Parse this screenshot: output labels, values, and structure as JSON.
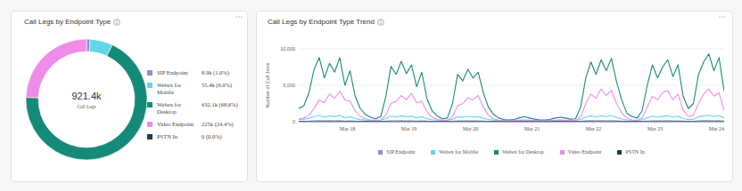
{
  "chart_data": [
    {
      "type": "donut",
      "title": "Call Legs by Endpoint Type",
      "center_label": "921.4k",
      "center_caption": "Call Legs",
      "categories": [
        "SIP Endpoint",
        "Webex for Mobile",
        "Webex for Desktop",
        "Video Endpoint",
        "PSTN In"
      ],
      "values": [
        8900,
        55400,
        632100,
        225000,
        0
      ],
      "value_labels": [
        "8.9k (1.0%)",
        "55.4k (6.0%)",
        "632.1k (68.6%)",
        "225k (24.4%)",
        "0 (0.0%)"
      ],
      "colors": [
        "#8d91d0",
        "#62d6e6",
        "#168a78",
        "#ef8be9",
        "#1d3a48"
      ]
    },
    {
      "type": "line",
      "title": "Call Legs by Endpoint Type Trend",
      "y_label": "Number of Call Joins",
      "x": [
        5,
        7,
        9,
        11,
        13,
        15,
        17,
        19,
        21,
        23,
        25,
        27,
        29,
        31,
        33,
        35,
        37,
        39,
        41,
        43,
        45,
        47,
        49,
        51,
        53,
        55,
        57,
        59,
        61,
        63,
        65,
        67,
        69,
        71,
        73,
        75,
        77,
        79,
        81,
        83,
        85,
        87,
        89,
        91,
        93,
        95,
        97,
        99,
        101,
        103,
        105,
        107,
        109,
        111,
        113,
        115,
        117,
        119,
        121,
        123,
        125,
        127,
        129,
        131,
        133,
        135,
        137,
        139,
        141,
        143,
        145,
        147,
        149,
        151,
        153,
        155,
        157,
        159,
        161,
        163,
        165,
        167,
        169,
        171
      ],
      "xlim": [
        5,
        171
      ],
      "xticks": [
        {
          "value": 24,
          "label": "Mar 18"
        },
        {
          "value": 48,
          "label": "Mar 19"
        },
        {
          "value": 72,
          "label": "Mar 20"
        },
        {
          "value": 96,
          "label": "Mar 21"
        },
        {
          "value": 120,
          "label": "Mar 22"
        },
        {
          "value": 144,
          "label": "Mar 23"
        },
        {
          "value": 168,
          "label": "Mar 24"
        }
      ],
      "ylim": [
        0,
        10000
      ],
      "yticks": [
        0,
        {
          "value": 5000,
          "label": "5,000"
        },
        {
          "value": 10000,
          "label": "10,000"
        }
      ],
      "grid": true,
      "legend": "bottom",
      "series": [
        {
          "name": "SIP Endpoint",
          "color": "#8d91d0",
          "values": [
            60,
            70,
            90,
            130,
            150,
            110,
            140,
            120,
            150,
            100,
            120,
            80,
            60,
            50,
            50,
            40,
            50,
            80,
            130,
            120,
            140,
            120,
            130,
            100,
            120,
            80,
            60,
            50,
            40,
            50,
            70,
            120,
            110,
            130,
            110,
            120,
            90,
            60,
            50,
            50,
            40,
            40,
            40,
            50,
            50,
            50,
            40,
            40,
            40,
            40,
            50,
            50,
            50,
            40,
            40,
            60,
            110,
            140,
            120,
            140,
            120,
            140,
            110,
            80,
            50,
            50,
            50,
            60,
            100,
            130,
            110,
            130,
            140,
            110,
            130,
            80,
            60,
            70,
            120,
            140,
            150,
            120,
            150,
            90
          ]
        },
        {
          "name": "Webex for Mobile",
          "color": "#62d6e6",
          "values": [
            290,
            330,
            470,
            730,
            850,
            630,
            790,
            690,
            850,
            550,
            710,
            430,
            290,
            230,
            200,
            180,
            210,
            430,
            760,
            670,
            810,
            680,
            770,
            530,
            690,
            410,
            270,
            210,
            180,
            190,
            350,
            670,
            600,
            730,
            630,
            690,
            470,
            310,
            230,
            190,
            170,
            170,
            170,
            190,
            210,
            190,
            180,
            170,
            170,
            170,
            190,
            200,
            190,
            180,
            180,
            310,
            630,
            810,
            670,
            830,
            710,
            850,
            590,
            390,
            250,
            210,
            190,
            270,
            550,
            770,
            630,
            750,
            830,
            650,
            770,
            430,
            290,
            350,
            670,
            810,
            890,
            710,
            850,
            490
          ]
        },
        {
          "name": "Webex for Desktop",
          "color": "#168a78",
          "values": [
            1800,
            2200,
            4000,
            7200,
            8800,
            6000,
            8000,
            6800,
            8800,
            5000,
            7000,
            3500,
            1800,
            1000,
            600,
            400,
            700,
            3500,
            7600,
            6500,
            8300,
            6600,
            7800,
            4800,
            6800,
            3200,
            1500,
            800,
            400,
            500,
            2500,
            6500,
            5600,
            7200,
            6000,
            6800,
            4000,
            2000,
            1000,
            500,
            300,
            250,
            300,
            500,
            700,
            500,
            350,
            250,
            250,
            300,
            500,
            600,
            500,
            350,
            400,
            2000,
            6000,
            8200,
            6500,
            8500,
            7000,
            8700,
            5500,
            3000,
            1200,
            700,
            500,
            1500,
            5000,
            7800,
            6000,
            7500,
            8500,
            6200,
            7800,
            3500,
            1800,
            2500,
            6500,
            8200,
            9300,
            7000,
            8800,
            4200
          ]
        },
        {
          "name": "Video Endpoint",
          "color": "#ef8be9",
          "values": [
            400,
            500,
            900,
            1800,
            3000,
            2600,
            3800,
            3200,
            4200,
            3000,
            2800,
            1500,
            700,
            400,
            250,
            200,
            250,
            900,
            2500,
            2800,
            3600,
            3000,
            3900,
            2600,
            2800,
            1400,
            600,
            300,
            200,
            200,
            700,
            2200,
            2500,
            3300,
            3000,
            3600,
            2000,
            900,
            400,
            200,
            150,
            120,
            150,
            200,
            250,
            200,
            150,
            120,
            120,
            150,
            200,
            250,
            200,
            150,
            150,
            600,
            2500,
            3800,
            3200,
            4500,
            3600,
            4300,
            2500,
            1200,
            500,
            250,
            200,
            500,
            2000,
            3500,
            3000,
            4000,
            4300,
            3000,
            3800,
            1600,
            700,
            900,
            2500,
            3800,
            4500,
            3500,
            4000,
            1500
          ]
        },
        {
          "name": "PSTN In",
          "color": "#1d3a48",
          "values": [
            0,
            0,
            0,
            0,
            0,
            0,
            0,
            0,
            0,
            0,
            0,
            0,
            0,
            0,
            0,
            0,
            0,
            0,
            0,
            0,
            0,
            0,
            0,
            0,
            0,
            0,
            0,
            0,
            0,
            0,
            0,
            0,
            0,
            0,
            0,
            0,
            0,
            0,
            0,
            0,
            0,
            0,
            0,
            0,
            0,
            0,
            0,
            0,
            0,
            0,
            0,
            0,
            0,
            0,
            0,
            0,
            0,
            0,
            0,
            0,
            0,
            0,
            0,
            0,
            0,
            0,
            0,
            0,
            0,
            0,
            0,
            0,
            0,
            0,
            0,
            0,
            0,
            0,
            0,
            0,
            0,
            0,
            0,
            0
          ]
        }
      ]
    }
  ]
}
